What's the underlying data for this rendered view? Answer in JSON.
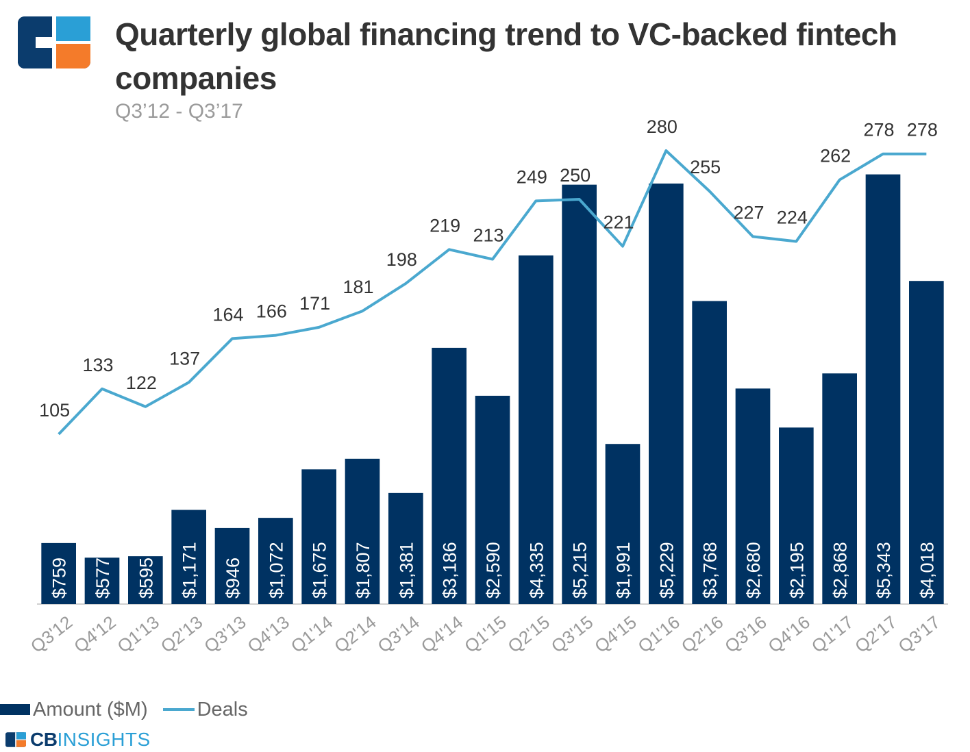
{
  "header": {
    "title": "Quarterly global financing trend to VC-backed fintech companies",
    "subtitle": "Q3’12 - Q3’17"
  },
  "colors": {
    "bar": "#003262",
    "line": "#4aa8cf",
    "logo_navy": "#0b3c6d",
    "logo_blue": "#2a9fd6",
    "logo_orange": "#f47b2a"
  },
  "legend": {
    "bar_label": "Amount ($M)",
    "line_label": "Deals"
  },
  "brand": {
    "cb": "CB",
    "insights": "INSIGHTS"
  },
  "chart_data": {
    "type": "bar",
    "title": "Quarterly global financing trend to VC-backed fintech companies",
    "subtitle": "Q3’12 - Q3’17",
    "categories": [
      "Q3'12",
      "Q4'12",
      "Q1'13",
      "Q2'13",
      "Q3'13",
      "Q4'13",
      "Q1'14",
      "Q2'14",
      "Q3'14",
      "Q4'14",
      "Q1'15",
      "Q2'15",
      "Q3'15",
      "Q4'15",
      "Q1'16",
      "Q2'16",
      "Q3'16",
      "Q4'16",
      "Q1'17",
      "Q2'17",
      "Q3'17"
    ],
    "series": [
      {
        "name": "Amount ($M)",
        "type": "bar",
        "values": [
          759,
          577,
          595,
          1171,
          946,
          1072,
          1675,
          1807,
          1381,
          3186,
          2590,
          4335,
          5215,
          1991,
          5229,
          3768,
          2680,
          2195,
          2868,
          5343,
          4018
        ],
        "labels": [
          "$759",
          "$577",
          "$595",
          "$1,171",
          "$946",
          "$1,072",
          "$1,675",
          "$1,807",
          "$1,381",
          "$3,186",
          "$2,590",
          "$4,335",
          "$5,215",
          "$1,991",
          "$5,229",
          "$3,768",
          "$2,680",
          "$2,195",
          "$2,868",
          "$5,343",
          "$4,018"
        ]
      },
      {
        "name": "Deals",
        "type": "line",
        "values": [
          105,
          133,
          122,
          137,
          164,
          166,
          171,
          181,
          198,
          219,
          213,
          249,
          250,
          221,
          280,
          255,
          227,
          224,
          262,
          278,
          278
        ]
      }
    ],
    "ylim_amount": [
      0,
      6200
    ],
    "ylim_deals": [
      -73,
      308
    ],
    "xlabel": "",
    "ylabel": "",
    "grid": false,
    "legend": "bottom-left"
  }
}
